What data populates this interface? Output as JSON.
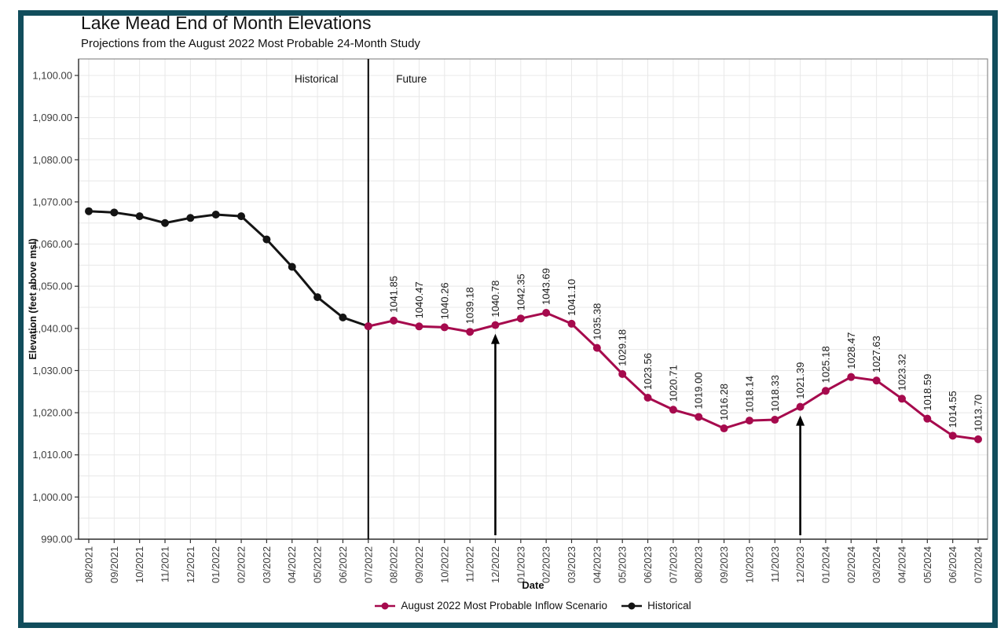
{
  "colors": {
    "frame_border": "#114d5c",
    "accent": "#a60a4d",
    "historical": "#141414",
    "grid": "#e8e8e8"
  },
  "chart_data": {
    "type": "line",
    "title": "Lake Mead End of Month Elevations",
    "subtitle": "Projections from the August 2022 Most Probable 24-Month Study",
    "xlabel": "Date",
    "ylabel": "Elevation (feet above msl)",
    "ylim": [
      990,
      1104
    ],
    "ytick_min": 990,
    "ytick_max": 1100,
    "ytick_step": 10,
    "grid": true,
    "legend_position": "bottom",
    "categories": [
      "08/2021",
      "09/2021",
      "10/2021",
      "11/2021",
      "12/2021",
      "01/2022",
      "02/2022",
      "03/2022",
      "04/2022",
      "05/2022",
      "06/2022",
      "07/2022",
      "08/2022",
      "09/2022",
      "10/2022",
      "11/2022",
      "12/2022",
      "01/2023",
      "02/2023",
      "03/2023",
      "04/2023",
      "05/2023",
      "06/2023",
      "07/2023",
      "08/2023",
      "09/2023",
      "10/2023",
      "11/2023",
      "12/2023",
      "01/2024",
      "02/2024",
      "03/2024",
      "04/2024",
      "05/2024",
      "06/2024",
      "07/2024"
    ],
    "series": [
      {
        "name": "Historical",
        "color": "#141414",
        "start_index": 0,
        "values": [
          1067.8,
          1067.5,
          1066.6,
          1065.0,
          1066.2,
          1067.0,
          1066.6,
          1061.1,
          1054.6,
          1047.4,
          1042.6,
          1040.5
        ]
      },
      {
        "name": "August 2022 Most Probable Inflow Scenario",
        "color": "#a60a4d",
        "start_index": 11,
        "values": [
          1040.5,
          1041.85,
          1040.47,
          1040.26,
          1039.18,
          1040.78,
          1042.35,
          1043.69,
          1041.1,
          1035.38,
          1029.18,
          1023.56,
          1020.71,
          1019.0,
          1016.28,
          1018.14,
          1018.33,
          1021.39,
          1025.18,
          1028.47,
          1027.63,
          1023.32,
          1018.59,
          1014.55,
          1013.7
        ],
        "labels": [
          "",
          "1041.85",
          "1040.47",
          "1040.26",
          "1039.18",
          "1040.78",
          "1042.35",
          "1043.69",
          "1041.10",
          "1035.38",
          "1029.18",
          "1023.56",
          "1020.71",
          "1019.00",
          "1016.28",
          "1018.14",
          "1018.33",
          "1021.39",
          "1025.18",
          "1028.47",
          "1027.63",
          "1023.32",
          "1018.59",
          "1014.55",
          "1013.70"
        ]
      }
    ],
    "annotations": {
      "divider_category": "07/2022",
      "left_section_label": "Historical",
      "right_section_label": "Future",
      "arrows": [
        {
          "category": "12/2022",
          "points_to_value": 1040.78
        },
        {
          "category": "12/2023",
          "points_to_value": 1021.39
        }
      ]
    }
  }
}
